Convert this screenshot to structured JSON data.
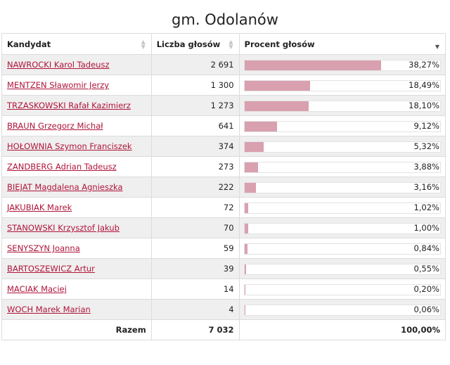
{
  "page_title": "gm. Odolanów",
  "headers": {
    "candidate": "Kandydat",
    "votes": "Liczba głosów",
    "percent": "Procent głosów"
  },
  "rows": [
    {
      "name": "NAWROCKI Karol Tadeusz",
      "votes": "2 691",
      "percent": "38,27%",
      "pct_value": 38.27
    },
    {
      "name": "MENTZEN Sławomir Jerzy",
      "votes": "1 300",
      "percent": "18,49%",
      "pct_value": 18.49
    },
    {
      "name": "TRZASKOWSKI Rafał Kazimierz",
      "votes": "1 273",
      "percent": "18,10%",
      "pct_value": 18.1
    },
    {
      "name": "BRAUN Grzegorz Michał",
      "votes": "641",
      "percent": "9,12%",
      "pct_value": 9.12
    },
    {
      "name": "HOŁOWNIA Szymon Franciszek",
      "votes": "374",
      "percent": "5,32%",
      "pct_value": 5.32
    },
    {
      "name": "ZANDBERG Adrian Tadeusz",
      "votes": "273",
      "percent": "3,88%",
      "pct_value": 3.88
    },
    {
      "name": "BIEJAT Magdalena Agnieszka",
      "votes": "222",
      "percent": "3,16%",
      "pct_value": 3.16
    },
    {
      "name": "JAKUBIAK Marek",
      "votes": "72",
      "percent": "1,02%",
      "pct_value": 1.02
    },
    {
      "name": "STANOWSKI Krzysztof Jakub",
      "votes": "70",
      "percent": "1,00%",
      "pct_value": 1.0
    },
    {
      "name": "SENYSZYN Joanna",
      "votes": "59",
      "percent": "0,84%",
      "pct_value": 0.84
    },
    {
      "name": "BARTOSZEWICZ Artur",
      "votes": "39",
      "percent": "0,55%",
      "pct_value": 0.55
    },
    {
      "name": "MACIAK Maciej",
      "votes": "14",
      "percent": "0,20%",
      "pct_value": 0.2
    },
    {
      "name": "WOCH Marek Marian",
      "votes": "4",
      "percent": "0,06%",
      "pct_value": 0.06
    }
  ],
  "footer": {
    "label": "Razem",
    "votes": "7 032",
    "percent": "100,00%"
  },
  "colors": {
    "link": "#b0143a",
    "bar": "#d9a0b0"
  }
}
